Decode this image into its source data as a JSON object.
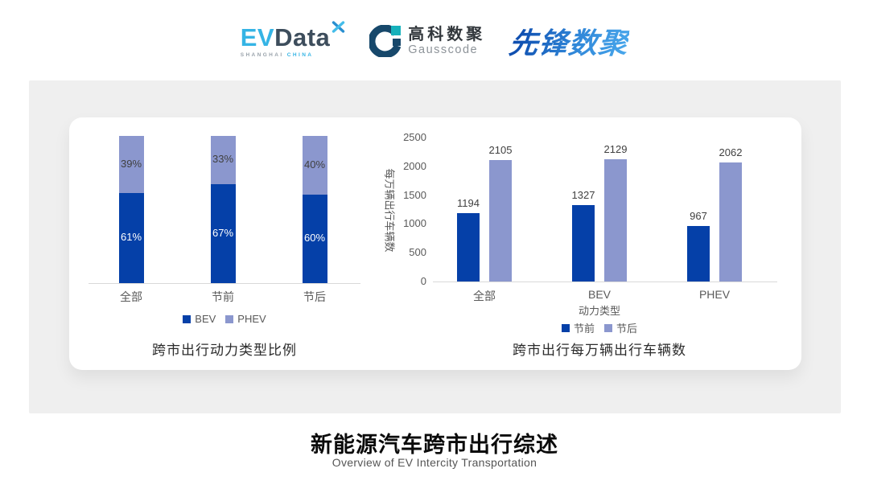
{
  "logos": {
    "evdata": {
      "ev": "EV",
      "data": "Data",
      "sub_left": "SHANGHAI",
      "sub_right": "CHINA",
      "mark": "x-star-icon",
      "cyan": "#35b4e5",
      "slate": "#3d4d5c"
    },
    "gausscode": {
      "cn": "高科数聚",
      "en": "Gausscode",
      "navy": "#17486b",
      "teal": "#16b1bb"
    },
    "pioneer": {
      "text": "先锋数聚",
      "blue": "#1f6cc4"
    }
  },
  "colors": {
    "series_dark_blue": "#0540a8",
    "series_light_blue": "#8b97ce",
    "axis_line": "#d9d9d9",
    "tick_text": "#595959",
    "value_text": "#404040",
    "chart_title_text": "#2b2b2b",
    "panel_gray": "#efefef"
  },
  "chart_data": [
    {
      "type": "bar",
      "variant": "stacked-percent",
      "title": "跨市出行动力类型比例",
      "categories": [
        "全部",
        "节前",
        "节后"
      ],
      "series": [
        {
          "name": "BEV",
          "color": "#0540a8",
          "values": [
            61,
            67,
            60
          ]
        },
        {
          "name": "PHEV",
          "color": "#8b97ce",
          "values": [
            39,
            33,
            40
          ]
        }
      ],
      "value_suffix": "%",
      "ylim": [
        0,
        100
      ],
      "grid": false,
      "legend_position": "bottom"
    },
    {
      "type": "bar",
      "variant": "grouped",
      "title": "跨市出行每万辆出行车辆数",
      "categories": [
        "全部",
        "BEV",
        "PHEV"
      ],
      "xlabel": "动力类型",
      "ylabel": "每万辆出行车辆数",
      "ylim": [
        0,
        2500
      ],
      "yticks": [
        0,
        500,
        1000,
        1500,
        2000,
        2500
      ],
      "series": [
        {
          "name": "节前",
          "color": "#0540a8",
          "values": [
            1194,
            1327,
            967
          ]
        },
        {
          "name": "节后",
          "color": "#8b97ce",
          "values": [
            2105,
            2129,
            2062
          ]
        }
      ],
      "grid": false,
      "legend_position": "bottom"
    }
  ],
  "footer": {
    "title": "新能源汽车跨市出行综述",
    "subtitle": "Overview of EV Intercity Transportation"
  }
}
